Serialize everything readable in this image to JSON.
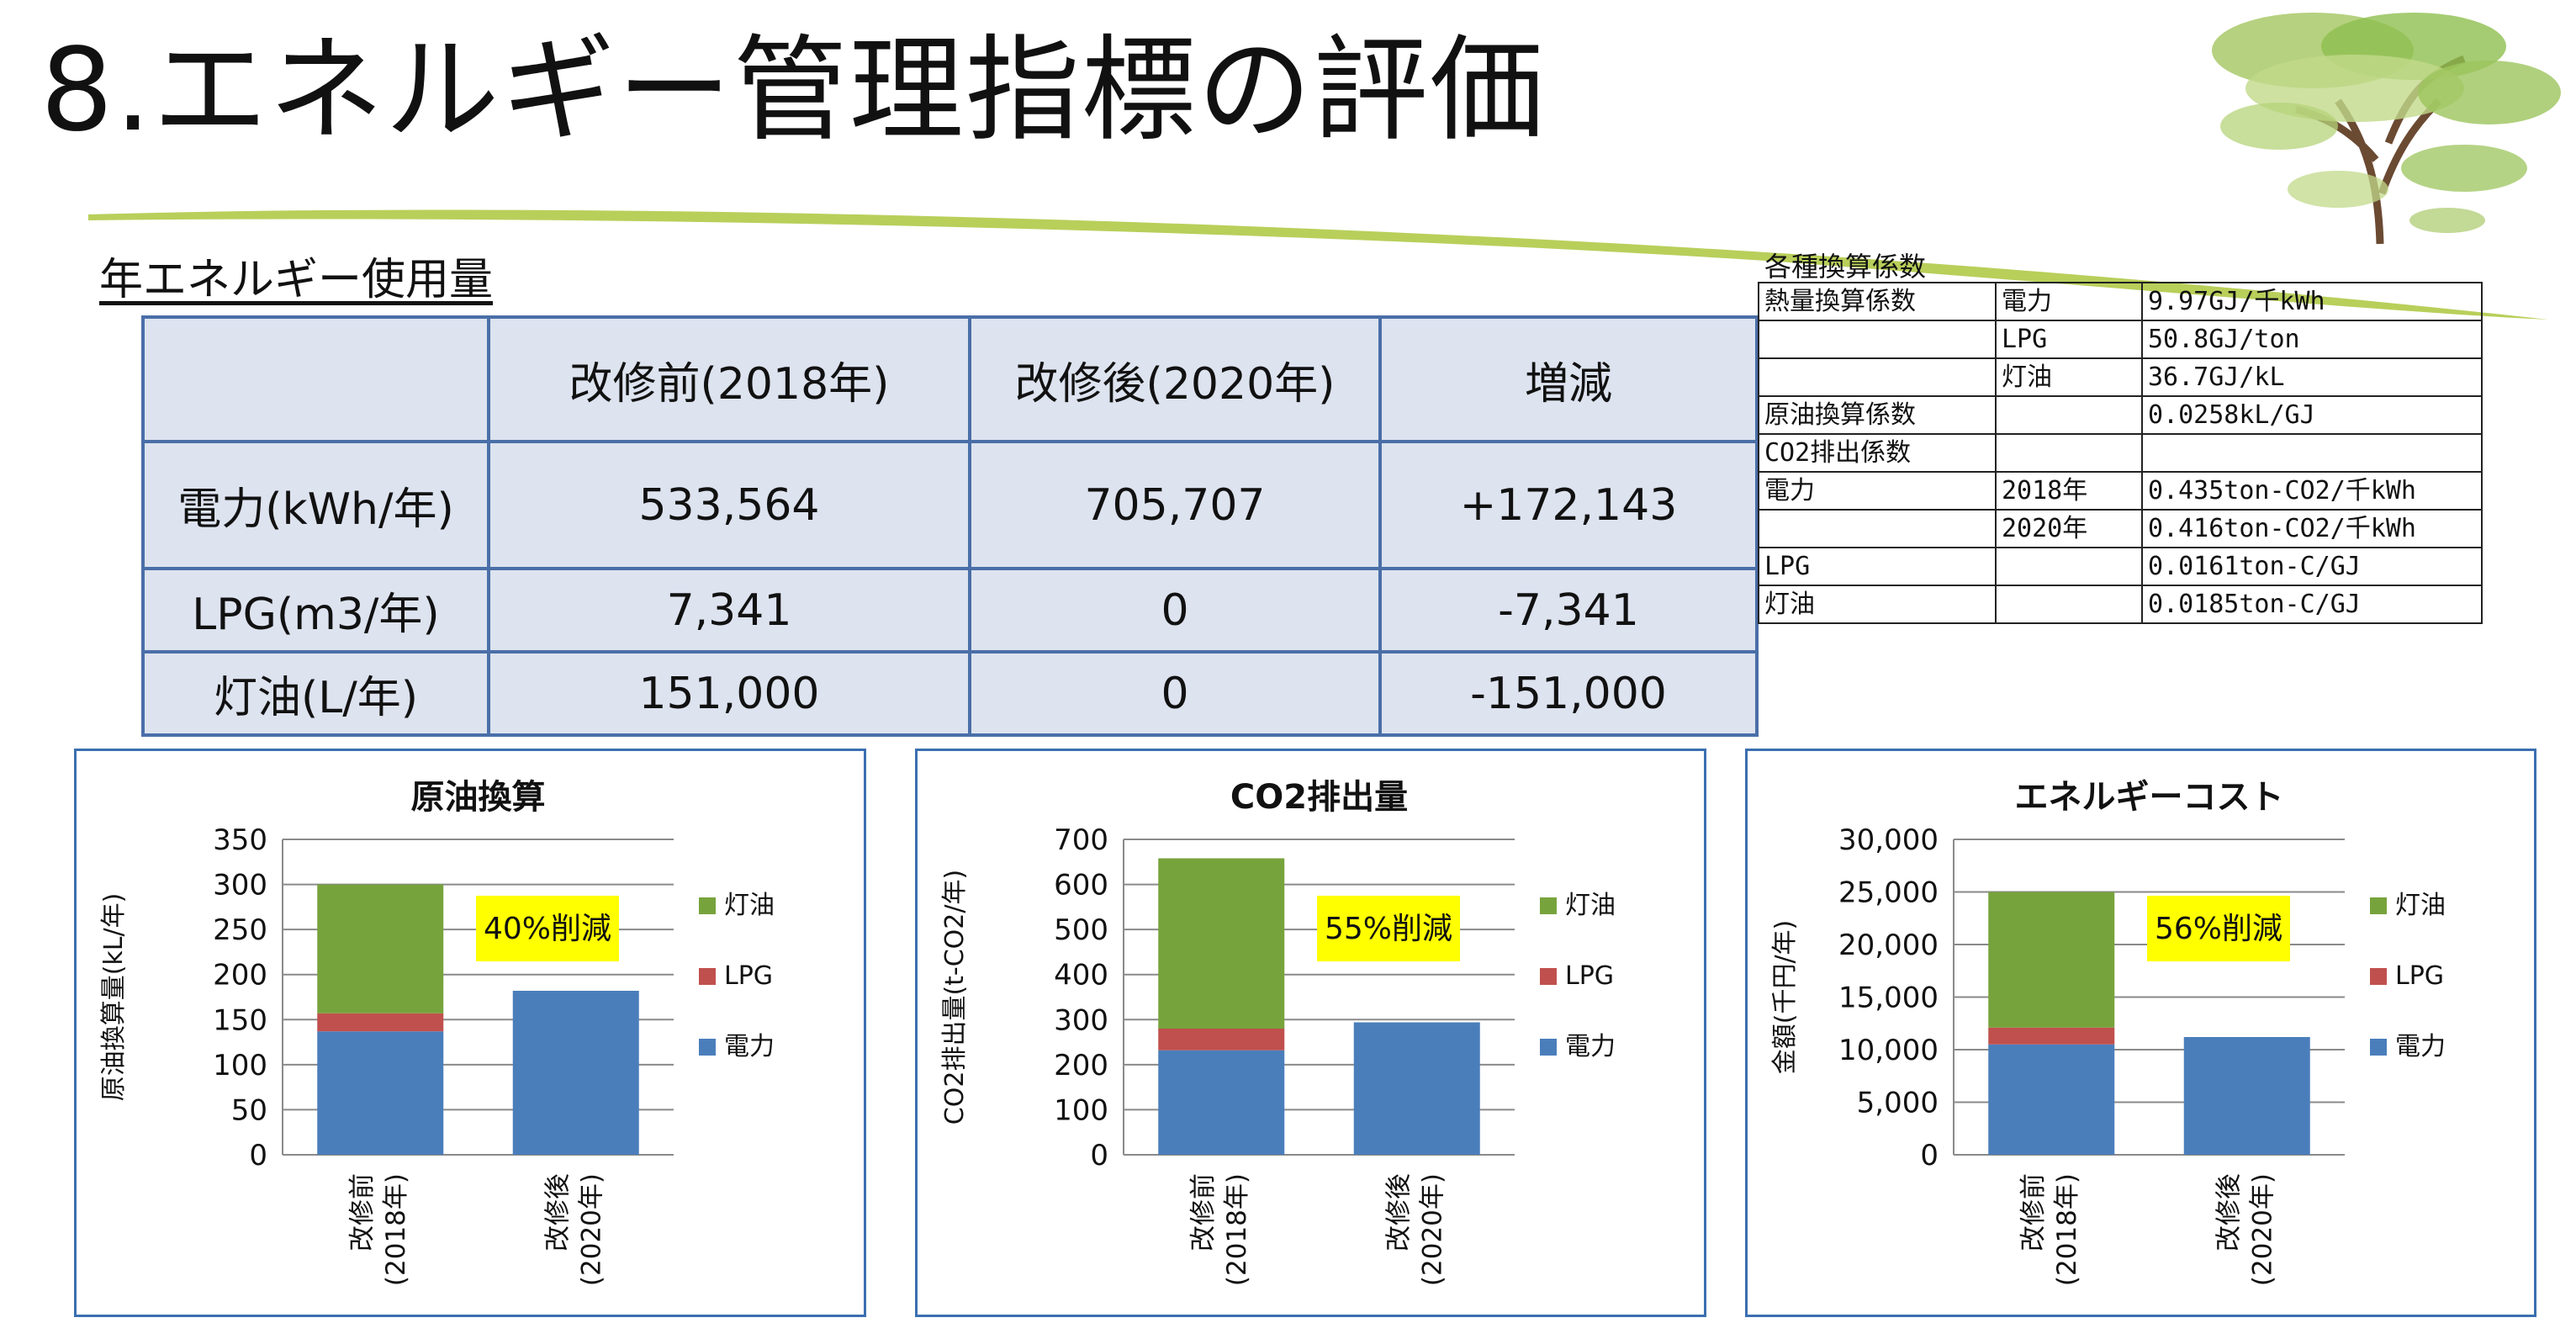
{
  "page": {
    "title": "8.エネルギー管理指標の評価"
  },
  "usage_section": {
    "title": "年エネルギー使用量",
    "headers": [
      "",
      "改修前(2018年)",
      "改修後(2020年)",
      "増減"
    ],
    "rows": [
      [
        "電力(kWh/年)",
        "533,564",
        "705,707",
        "+172,143"
      ],
      [
        "LPG(m3/年)",
        "7,341",
        "0",
        "-7,341"
      ],
      [
        "灯油(L/年)",
        "151,000",
        "0",
        "-151,000"
      ]
    ]
  },
  "conversion": {
    "title": "各種換算係数",
    "rows": [
      [
        "熱量換算係数",
        "電力",
        "9.97GJ/千kWh"
      ],
      [
        "",
        "LPG",
        "50.8GJ/ton"
      ],
      [
        "",
        "灯油",
        "36.7GJ/kL"
      ],
      [
        "原油換算係数",
        "",
        "0.0258kL/GJ"
      ],
      [
        "CO2排出係数",
        "",
        ""
      ],
      [
        "電力",
        "2018年",
        "0.435ton-CO2/千kWh"
      ],
      [
        "",
        "2020年",
        "0.416ton-CO2/千kWh"
      ],
      [
        "LPG",
        "",
        "0.0161ton-C/GJ"
      ],
      [
        "灯油",
        "",
        "0.0185ton-C/GJ"
      ]
    ]
  },
  "colors": {
    "電力": "#4a7ebb",
    "LPG": "#c0504d",
    "灯油": "#77a33c",
    "callout": "#ffff00",
    "border": "#3b6fb0"
  },
  "chart_data": [
    {
      "type": "bar",
      "stacked": true,
      "title": "原油換算",
      "ylabel": "原油換算量(kL/年)",
      "categories": [
        "改修前\n(2018年)",
        "改修後\n(2020年)"
      ],
      "ylim": [
        0,
        350
      ],
      "yticks": [
        "350",
        "300",
        "250",
        "200",
        "150",
        "100",
        "50",
        "0"
      ],
      "series": [
        {
          "name": "電力",
          "values": [
            137,
            182
          ]
        },
        {
          "name": "LPG",
          "values": [
            20,
            0
          ]
        },
        {
          "name": "灯油",
          "values": [
            143,
            0
          ]
        }
      ],
      "annotation": "40%削減",
      "grid": true,
      "legend": "right"
    },
    {
      "type": "bar",
      "stacked": true,
      "title": "CO2排出量",
      "ylabel": "CO2排出量(t-CO2/年)",
      "categories": [
        "改修前\n(2018年)",
        "改修後\n(2020年)"
      ],
      "ylim": [
        0,
        700
      ],
      "yticks": [
        "700",
        "600",
        "500",
        "400",
        "300",
        "200",
        "100",
        "0"
      ],
      "series": [
        {
          "name": "電力",
          "values": [
            232,
            294
          ]
        },
        {
          "name": "LPG",
          "values": [
            48,
            0
          ]
        },
        {
          "name": "灯油",
          "values": [
            378,
            0
          ]
        }
      ],
      "annotation": "55%削減",
      "grid": true,
      "legend": "right"
    },
    {
      "type": "bar",
      "stacked": true,
      "title": "エネルギーコスト",
      "ylabel": "金額(千円/年)",
      "categories": [
        "改修前\n(2018年)",
        "改修後\n(2020年)"
      ],
      "ylim": [
        0,
        30000
      ],
      "yticks": [
        "30,000",
        "25,000",
        "20,000",
        "15,000",
        "10,000",
        "5,000",
        "0"
      ],
      "series": [
        {
          "name": "電力",
          "values": [
            10500,
            11200
          ]
        },
        {
          "name": "LPG",
          "values": [
            1600,
            0
          ]
        },
        {
          "name": "灯油",
          "values": [
            12900,
            0
          ]
        }
      ],
      "annotation": "56%削減",
      "grid": true,
      "legend": "right"
    }
  ]
}
